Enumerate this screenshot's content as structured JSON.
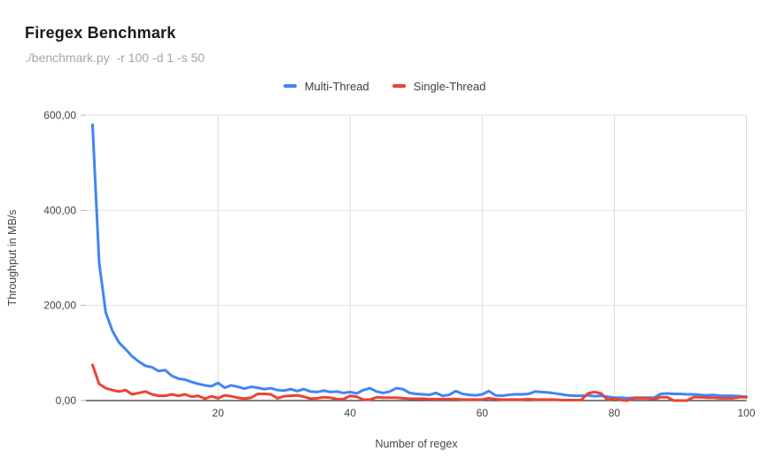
{
  "colors": {
    "multi_thread": "#4285f4",
    "single_thread": "#ea4335",
    "gridline": "#e3e3e3",
    "vertical_gridline": "#dadada",
    "axis_line": "#333333",
    "tick_dash": "#b0b0b0"
  },
  "chart_data": {
    "type": "line",
    "title": "Firegex Benchmark",
    "subtitle": "./benchmark.py  -r 100 -d 1 -s 50",
    "xlabel": "Number of regex",
    "ylabel": "Throughput in MB/s",
    "xlim": [
      0,
      100
    ],
    "ylim": [
      0,
      600
    ],
    "grid": true,
    "legend_position": "top-center",
    "x_start": 1,
    "xticks": [
      {
        "value": 20,
        "label": "20"
      },
      {
        "value": 40,
        "label": "40"
      },
      {
        "value": 60,
        "label": "60"
      },
      {
        "value": 80,
        "label": "80"
      },
      {
        "value": 100,
        "label": "100"
      }
    ],
    "yticks": [
      {
        "value": 0,
        "label": "0,00"
      },
      {
        "value": 200,
        "label": "200,00"
      },
      {
        "value": 400,
        "label": "400,00"
      },
      {
        "value": 600,
        "label": "600,00"
      }
    ],
    "series": [
      {
        "name": "Multi-Thread",
        "color": "#4285f4",
        "values": [
          580,
          290,
          185,
          147,
          122,
          108,
          93,
          82,
          73,
          70,
          62,
          64,
          52,
          46,
          44,
          39,
          35,
          32,
          30,
          37,
          27,
          32,
          29,
          25,
          29,
          27,
          24,
          26,
          22,
          21,
          24,
          20,
          24,
          19,
          18,
          21,
          18,
          19,
          16,
          18,
          15,
          22,
          26,
          19,
          16,
          19,
          26,
          24,
          16,
          14,
          13,
          12,
          16,
          10,
          12,
          20,
          14,
          12,
          11,
          13,
          20,
          11,
          10,
          12,
          13,
          13,
          14,
          19,
          18,
          17,
          15,
          13,
          11,
          10,
          10,
          11,
          9,
          10,
          8,
          6,
          6,
          5,
          6,
          6,
          6,
          6,
          14,
          15,
          14,
          14,
          13,
          13,
          12,
          11,
          12,
          10,
          10,
          10,
          9,
          8
        ]
      },
      {
        "name": "Single-Thread",
        "color": "#ea4335",
        "values": [
          75,
          35,
          26,
          22,
          19,
          22,
          13,
          16,
          19,
          13,
          10,
          10,
          13,
          10,
          13,
          8,
          10,
          4,
          9,
          5,
          11,
          9,
          6,
          4,
          6,
          14,
          14,
          13,
          5,
          9,
          10,
          11,
          8,
          4,
          5,
          7,
          6,
          3,
          3,
          10,
          8,
          2,
          2,
          7,
          6,
          6,
          6,
          5,
          4,
          4,
          4,
          3,
          3,
          3,
          3,
          3,
          2,
          2,
          2,
          2,
          5,
          3,
          2,
          2,
          2,
          2,
          3,
          2,
          2,
          2,
          2,
          1,
          1,
          1,
          1,
          15,
          18,
          15,
          1,
          5,
          1,
          0,
          5,
          5,
          5,
          3,
          7,
          7,
          0,
          0,
          0,
          7,
          7,
          6,
          6,
          5,
          5,
          5,
          7,
          7
        ]
      }
    ]
  }
}
